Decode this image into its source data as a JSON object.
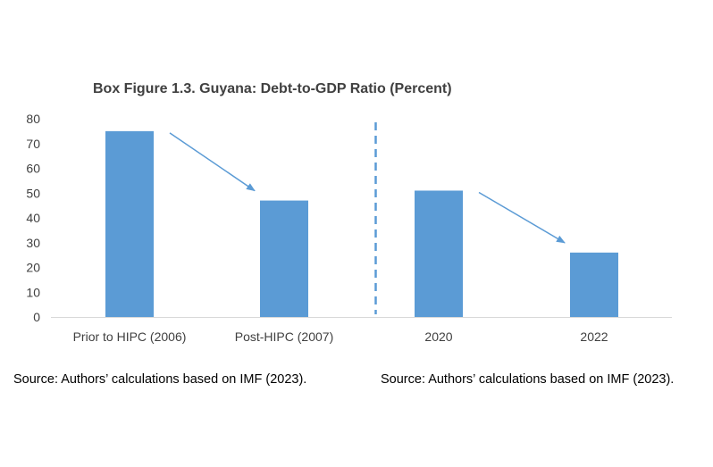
{
  "chart_data": {
    "type": "bar",
    "title": "Box Figure 1.3. Guyana: Debt-to-GDP Ratio (Percent)",
    "categories": [
      "Prior to HIPC (2006)",
      "Post-HIPC (2007)",
      "2020",
      "2022"
    ],
    "values": [
      75,
      47,
      51,
      26
    ],
    "ylim": [
      0,
      80
    ],
    "yticks": [
      0,
      10,
      20,
      30,
      40,
      50,
      60,
      70,
      80
    ],
    "xlabel": "",
    "ylabel": "",
    "grid": false,
    "legend": "none",
    "bar_color": "#5b9bd5",
    "arrow_color": "#5b9bd5",
    "annotations": [
      {
        "type": "arrow",
        "from_category": "Prior to HIPC (2006)",
        "to_category": "Post-HIPC (2007)"
      },
      {
        "type": "arrow",
        "from_category": "2020",
        "to_category": "2022"
      },
      {
        "type": "dashed-divider",
        "between": [
          "Post-HIPC (2007)",
          "2020"
        ]
      }
    ]
  },
  "sources": [
    "Source: Authors’ calculations based on IMF (2023).",
    "Source: Authors’ calculations based on IMF (2023)."
  ]
}
